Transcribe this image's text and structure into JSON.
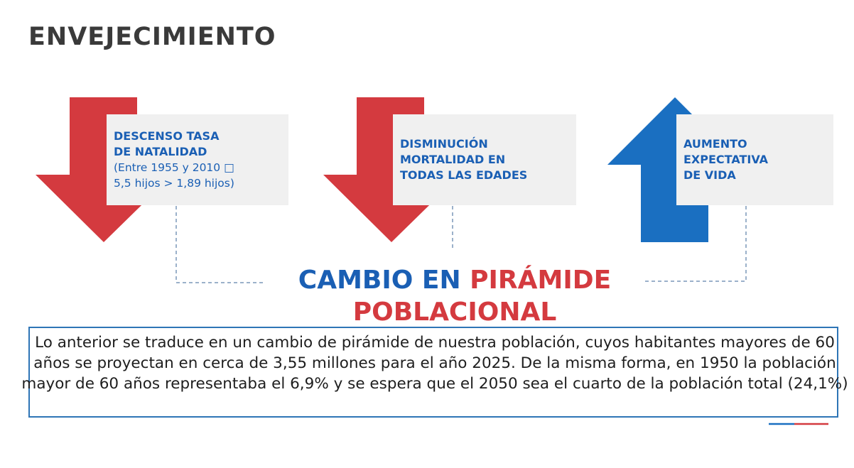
{
  "title": "ENVEJECIMIENTO",
  "factors": [
    {
      "head": "DESCENSO TASA\nDE NATALIDAD",
      "sub": "(Entre 1955 y 2010 □\n5,5 hijos > 1,89 hijos)",
      "icon": "arrow-down-icon",
      "color": "#d43a3f"
    },
    {
      "head": "DISMINUCIÓN\nMORTALIDAD EN\nTODAS LAS EDADES",
      "icon": "arrow-down-icon",
      "color": "#d43a3f"
    },
    {
      "head": "AUMENTO\nEXPECTATIVA\nDE VIDA",
      "icon": "arrow-up-icon",
      "color": "#1a6fc1"
    }
  ],
  "headline": {
    "part1": "CAMBIO EN ",
    "part2": "PIRÁMIDE",
    "part3": "POBLACIONAL"
  },
  "body_text": "Lo anterior se traduce en un cambio de pirámide de nuestra población, cuyos habitantes mayores de 60 años se proyectan en cerca de 3,55 millones para el año 2025. De la misma forma, en 1950 la población mayor de 60 años representaba el 6,9% y se espera que el 2050 sea el cuarto de la población total (24,1%)",
  "colors": {
    "blue": "#1a5fb4",
    "red": "#d43a3f",
    "box_bg": "#f0f0f0",
    "border": "#2e75b6"
  }
}
